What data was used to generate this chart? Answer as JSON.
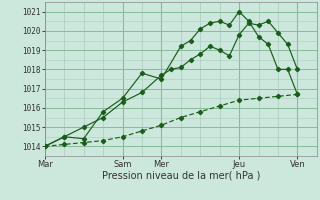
{
  "xlabel": "Pression niveau de la mer( hPa )",
  "background_color": "#cce8dc",
  "grid_color_major": "#88bb99",
  "grid_color_minor": "#aaccbb",
  "line_color": "#1a5c1a",
  "xlim": [
    0,
    14
  ],
  "ylim": [
    1013.5,
    1021.5
  ],
  "yticks": [
    1014,
    1015,
    1016,
    1017,
    1018,
    1019,
    1020,
    1021
  ],
  "xtick_major_positions": [
    0,
    4,
    6,
    10,
    13
  ],
  "xtick_major_labels": [
    "Mar",
    "Sam",
    "Mer",
    "Jeu",
    "Ven"
  ],
  "vlines_major": [
    0,
    4,
    6,
    10,
    13
  ],
  "vlines_minor": [
    1,
    2,
    3,
    5,
    7,
    8,
    9,
    11,
    12
  ],
  "line1_x": [
    0,
    1,
    2,
    3,
    4,
    5,
    6,
    6.5,
    7,
    7.5,
    8,
    8.5,
    9,
    9.5,
    10,
    10.5,
    11,
    11.5,
    12,
    12.5,
    13
  ],
  "line1_y": [
    1014.0,
    1014.5,
    1015.0,
    1015.5,
    1016.3,
    1016.8,
    1017.7,
    1018.0,
    1018.1,
    1018.5,
    1018.8,
    1019.2,
    1019.0,
    1018.7,
    1019.8,
    1020.4,
    1020.3,
    1020.5,
    1019.9,
    1019.3,
    1018.0
  ],
  "line2_x": [
    0,
    1,
    2,
    3,
    4,
    5,
    6,
    7,
    7.5,
    8,
    8.5,
    9,
    9.5,
    10,
    10.5,
    11,
    11.5,
    12,
    12.5,
    13
  ],
  "line2_y": [
    1014.0,
    1014.5,
    1014.4,
    1015.8,
    1016.5,
    1017.8,
    1017.5,
    1019.2,
    1019.5,
    1020.1,
    1020.4,
    1020.5,
    1020.3,
    1021.0,
    1020.5,
    1019.7,
    1019.3,
    1018.0,
    1018.0,
    1016.7
  ],
  "line3_x": [
    0,
    1,
    2,
    3,
    4,
    5,
    6,
    7,
    8,
    9,
    10,
    11,
    12,
    13
  ],
  "line3_y": [
    1014.0,
    1014.1,
    1014.2,
    1014.3,
    1014.5,
    1014.8,
    1015.1,
    1015.5,
    1015.8,
    1016.1,
    1016.4,
    1016.5,
    1016.6,
    1016.7
  ]
}
